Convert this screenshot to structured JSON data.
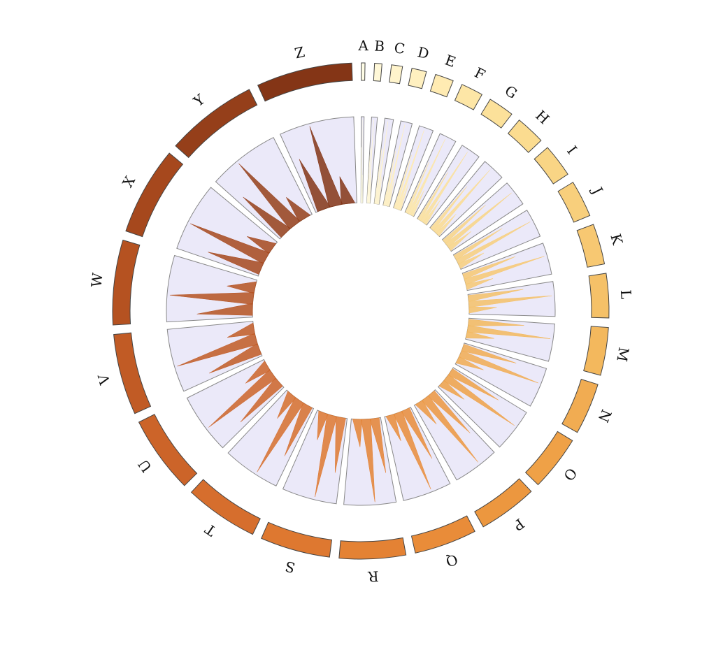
{
  "chart_data": {
    "type": "circos",
    "segments": [
      {
        "label": "A",
        "length": 1,
        "color": "#fffde6"
      },
      {
        "label": "B",
        "length": 2,
        "color": "#fff8d8"
      },
      {
        "label": "C",
        "length": 3,
        "color": "#fff4cc"
      },
      {
        "label": "D",
        "length": 4,
        "color": "#fff0c0"
      },
      {
        "label": "E",
        "length": 5,
        "color": "#ffebb2"
      },
      {
        "label": "F",
        "length": 6,
        "color": "#fde6a6"
      },
      {
        "label": "G",
        "length": 7,
        "color": "#fce19a"
      },
      {
        "label": "H",
        "length": 8,
        "color": "#fbdc90"
      },
      {
        "label": "I",
        "length": 9,
        "color": "#f9d585"
      },
      {
        "label": "J",
        "length": 10,
        "color": "#f8cf7c"
      },
      {
        "label": "K",
        "length": 11,
        "color": "#f7c872"
      },
      {
        "label": "L",
        "length": 12,
        "color": "#f5c168"
      },
      {
        "label": "M",
        "length": 13,
        "color": "#f3b85d"
      },
      {
        "label": "N",
        "length": 14,
        "color": "#f1ac52"
      },
      {
        "label": "O",
        "length": 15,
        "color": "#efa147"
      },
      {
        "label": "P",
        "length": 16,
        "color": "#ec973f"
      },
      {
        "label": "Q",
        "length": 17,
        "color": "#e98c39"
      },
      {
        "label": "R",
        "length": 18,
        "color": "#e48234"
      },
      {
        "label": "S",
        "length": 19,
        "color": "#de7830"
      },
      {
        "label": "T",
        "length": 20,
        "color": "#d66e2d"
      },
      {
        "label": "U",
        "length": 21,
        "color": "#cc6429"
      },
      {
        "label": "V",
        "length": 22,
        "color": "#c15b25"
      },
      {
        "label": "W",
        "length": 23,
        "color": "#b55221"
      },
      {
        "label": "X",
        "length": 24,
        "color": "#a6481d"
      },
      {
        "label": "Y",
        "length": 25,
        "color": "#953f1a"
      },
      {
        "label": "Z",
        "length": 26,
        "color": "#843516"
      }
    ],
    "spike_peaks": [
      2,
      3,
      1
    ],
    "spike_max": 3,
    "legend": "none",
    "grid": false
  }
}
